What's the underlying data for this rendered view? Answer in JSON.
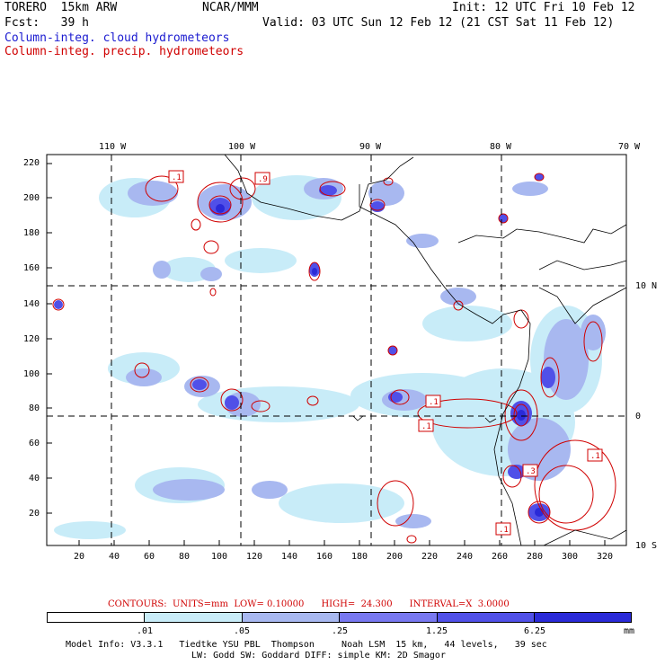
{
  "header": {
    "model": "TORERO  15km ARW",
    "org": "NCAR/MMM",
    "init": "Init: 12 UTC Fri 10 Feb 12",
    "fcst": "Fcst:   39 h",
    "valid": "Valid: 03 UTC Sun 12 Feb 12 (21 CST Sat 11 Feb 12)",
    "legend_cloud": "Column-integ. cloud hydrometeors",
    "legend_precip": "Column-integ. precip. hydrometeors"
  },
  "axes": {
    "lon_labels": [
      "110 W",
      "100 W",
      "90 W",
      "80 W",
      "70 W"
    ],
    "lat_labels": [
      "10 N",
      "0",
      "10 S"
    ],
    "y_ticks": [
      "220",
      "200",
      "180",
      "160",
      "140",
      "120",
      "100",
      "80",
      "60",
      "40",
      "20"
    ],
    "x_ticks": [
      "20",
      "40",
      "60",
      "80",
      "100",
      "120",
      "140",
      "160",
      "180",
      "200",
      "220",
      "240",
      "260",
      "280",
      "300",
      "320"
    ]
  },
  "contour_label": "CONTOURS:  UNITS=mm  LOW= 0.10000      HIGH=  24.300      INTERVAL=X  3.0000",
  "colorbar": {
    "ticks": [
      ".01",
      ".05",
      ".25",
      "1.25",
      "6.25"
    ],
    "units": "mm",
    "colors": [
      "#ffffff",
      "#c8ecf8",
      "#a8b8f0",
      "#7878f0",
      "#5050e8",
      "#2a2ad8"
    ]
  },
  "contour_labels": [
    ".1",
    ".9",
    ".1",
    ".1",
    ".1",
    ".3",
    ".1"
  ],
  "footer": {
    "line1": "Model Info: V3.3.1   Tiedtke YSU PBL  Thompson     Noah LSM  15 km,   44 levels,   39 sec",
    "line2": "LW: Godd SW: Goddard DIFF: simple KM: 2D Smagor"
  }
}
